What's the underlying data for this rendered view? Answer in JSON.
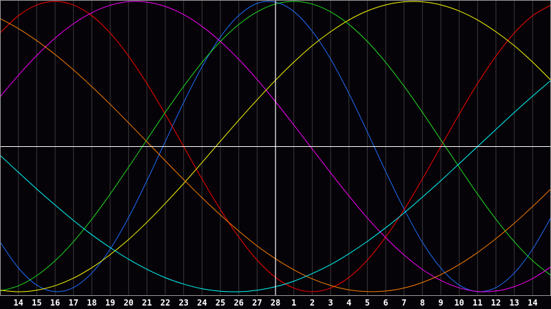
{
  "chart_data": {
    "type": "line",
    "title": "",
    "xlabel": "",
    "ylabel": "",
    "ylim": [
      -1,
      1
    ],
    "grid": true,
    "highlighted_day": "28",
    "categories": [
      "14",
      "15",
      "16",
      "17",
      "18",
      "19",
      "20",
      "21",
      "22",
      "23",
      "24",
      "25",
      "26",
      "27",
      "28",
      "1",
      "2",
      "3",
      "4",
      "5",
      "6",
      "7",
      "8",
      "9",
      "10",
      "11",
      "12",
      "13",
      "14"
    ],
    "series": [
      {
        "color": "#1e6eff",
        "period_days": 23,
        "values": [
          -0.836,
          -0.954,
          -0.999,
          -0.971,
          -0.871,
          -0.706,
          -0.489,
          -0.235,
          0.035,
          0.304,
          0.549,
          0.755,
          0.903,
          0.986,
          0.995,
          0.93,
          0.795,
          0.603,
          0.365,
          0.101,
          -0.172,
          -0.431,
          -0.659,
          -0.837,
          -0.954,
          -0.999,
          -0.971,
          -0.871,
          -0.706
        ]
      },
      {
        "color": "#ff0000",
        "period_days": 28,
        "values": [
          0.901,
          0.975,
          1,
          0.975,
          0.901,
          0.782,
          0.623,
          0.434,
          0.223,
          0,
          -0.223,
          -0.434,
          -0.623,
          -0.782,
          -0.901,
          -0.975,
          -1,
          -0.975,
          -0.901,
          -0.782,
          -0.623,
          -0.434,
          -0.223,
          0,
          0.223,
          0.434,
          0.623,
          0.782,
          0.901
        ]
      },
      {
        "color": "#22e022",
        "period_days": 33,
        "values": [
          -0.959,
          -0.889,
          -0.786,
          -0.655,
          -0.5,
          -0.327,
          -0.142,
          0.047,
          0.236,
          0.415,
          0.58,
          0.724,
          0.841,
          0.928,
          0.982,
          1,
          0.982,
          0.928,
          0.841,
          0.724,
          0.58,
          0.415,
          0.236,
          0.047,
          -0.142,
          -0.327,
          -0.5,
          -0.655,
          -0.786
        ]
      },
      {
        "color": "#ff00ff",
        "period_days": 38,
        "values": [
          0.491,
          0.627,
          0.747,
          0.846,
          0.922,
          0.973,
          0.998,
          0.995,
          0.965,
          0.909,
          0.828,
          0.724,
          0.601,
          0.462,
          0.309,
          0.148,
          -0.016,
          -0.181,
          -0.34,
          -0.491,
          -0.627,
          -0.747,
          -0.846,
          -0.922,
          -0.973,
          -0.998,
          -0.995,
          -0.965,
          -0.909
        ]
      },
      {
        "color": "#ffff00",
        "period_days": 43,
        "values": [
          -1,
          -0.989,
          -0.958,
          -0.906,
          -0.834,
          -0.744,
          -0.64,
          -0.521,
          -0.391,
          -0.254,
          -0.11,
          0.037,
          0.182,
          0.322,
          0.457,
          0.582,
          0.695,
          0.791,
          0.872,
          0.934,
          0.976,
          0.997,
          0.997,
          0.976,
          0.934,
          0.872,
          0.791,
          0.695,
          0.582
        ]
      },
      {
        "color": "#ff8000",
        "period_days": 48,
        "values": [
          0.813,
          0.73,
          0.634,
          0.528,
          0.413,
          0.291,
          0.163,
          0.033,
          -0.098,
          -0.227,
          -0.352,
          -0.471,
          -0.582,
          -0.684,
          -0.773,
          -0.849,
          -0.911,
          -0.957,
          -0.987,
          -0.999,
          -0.995,
          -0.974,
          -0.936,
          -0.882,
          -0.813,
          -0.73,
          -0.634,
          -0.528,
          -0.413
        ]
      },
      {
        "color": "#00ffff",
        "period_days": 53,
        "values": [
          -0.177,
          -0.292,
          -0.403,
          -0.509,
          -0.607,
          -0.696,
          -0.776,
          -0.845,
          -0.903,
          -0.947,
          -0.979,
          -0.996,
          -1.0,
          -0.989,
          -0.965,
          -0.927,
          -0.875,
          -0.813,
          -0.738,
          -0.653,
          -0.559,
          -0.457,
          -0.348,
          -0.235,
          -0.118,
          0,
          0.118,
          0.235,
          0.348
        ]
      }
    ]
  },
  "colors": {
    "background": "#050308",
    "grid": "#3a3a3a",
    "border": "#9a9a9a",
    "axis_lines": "#ffffff"
  }
}
